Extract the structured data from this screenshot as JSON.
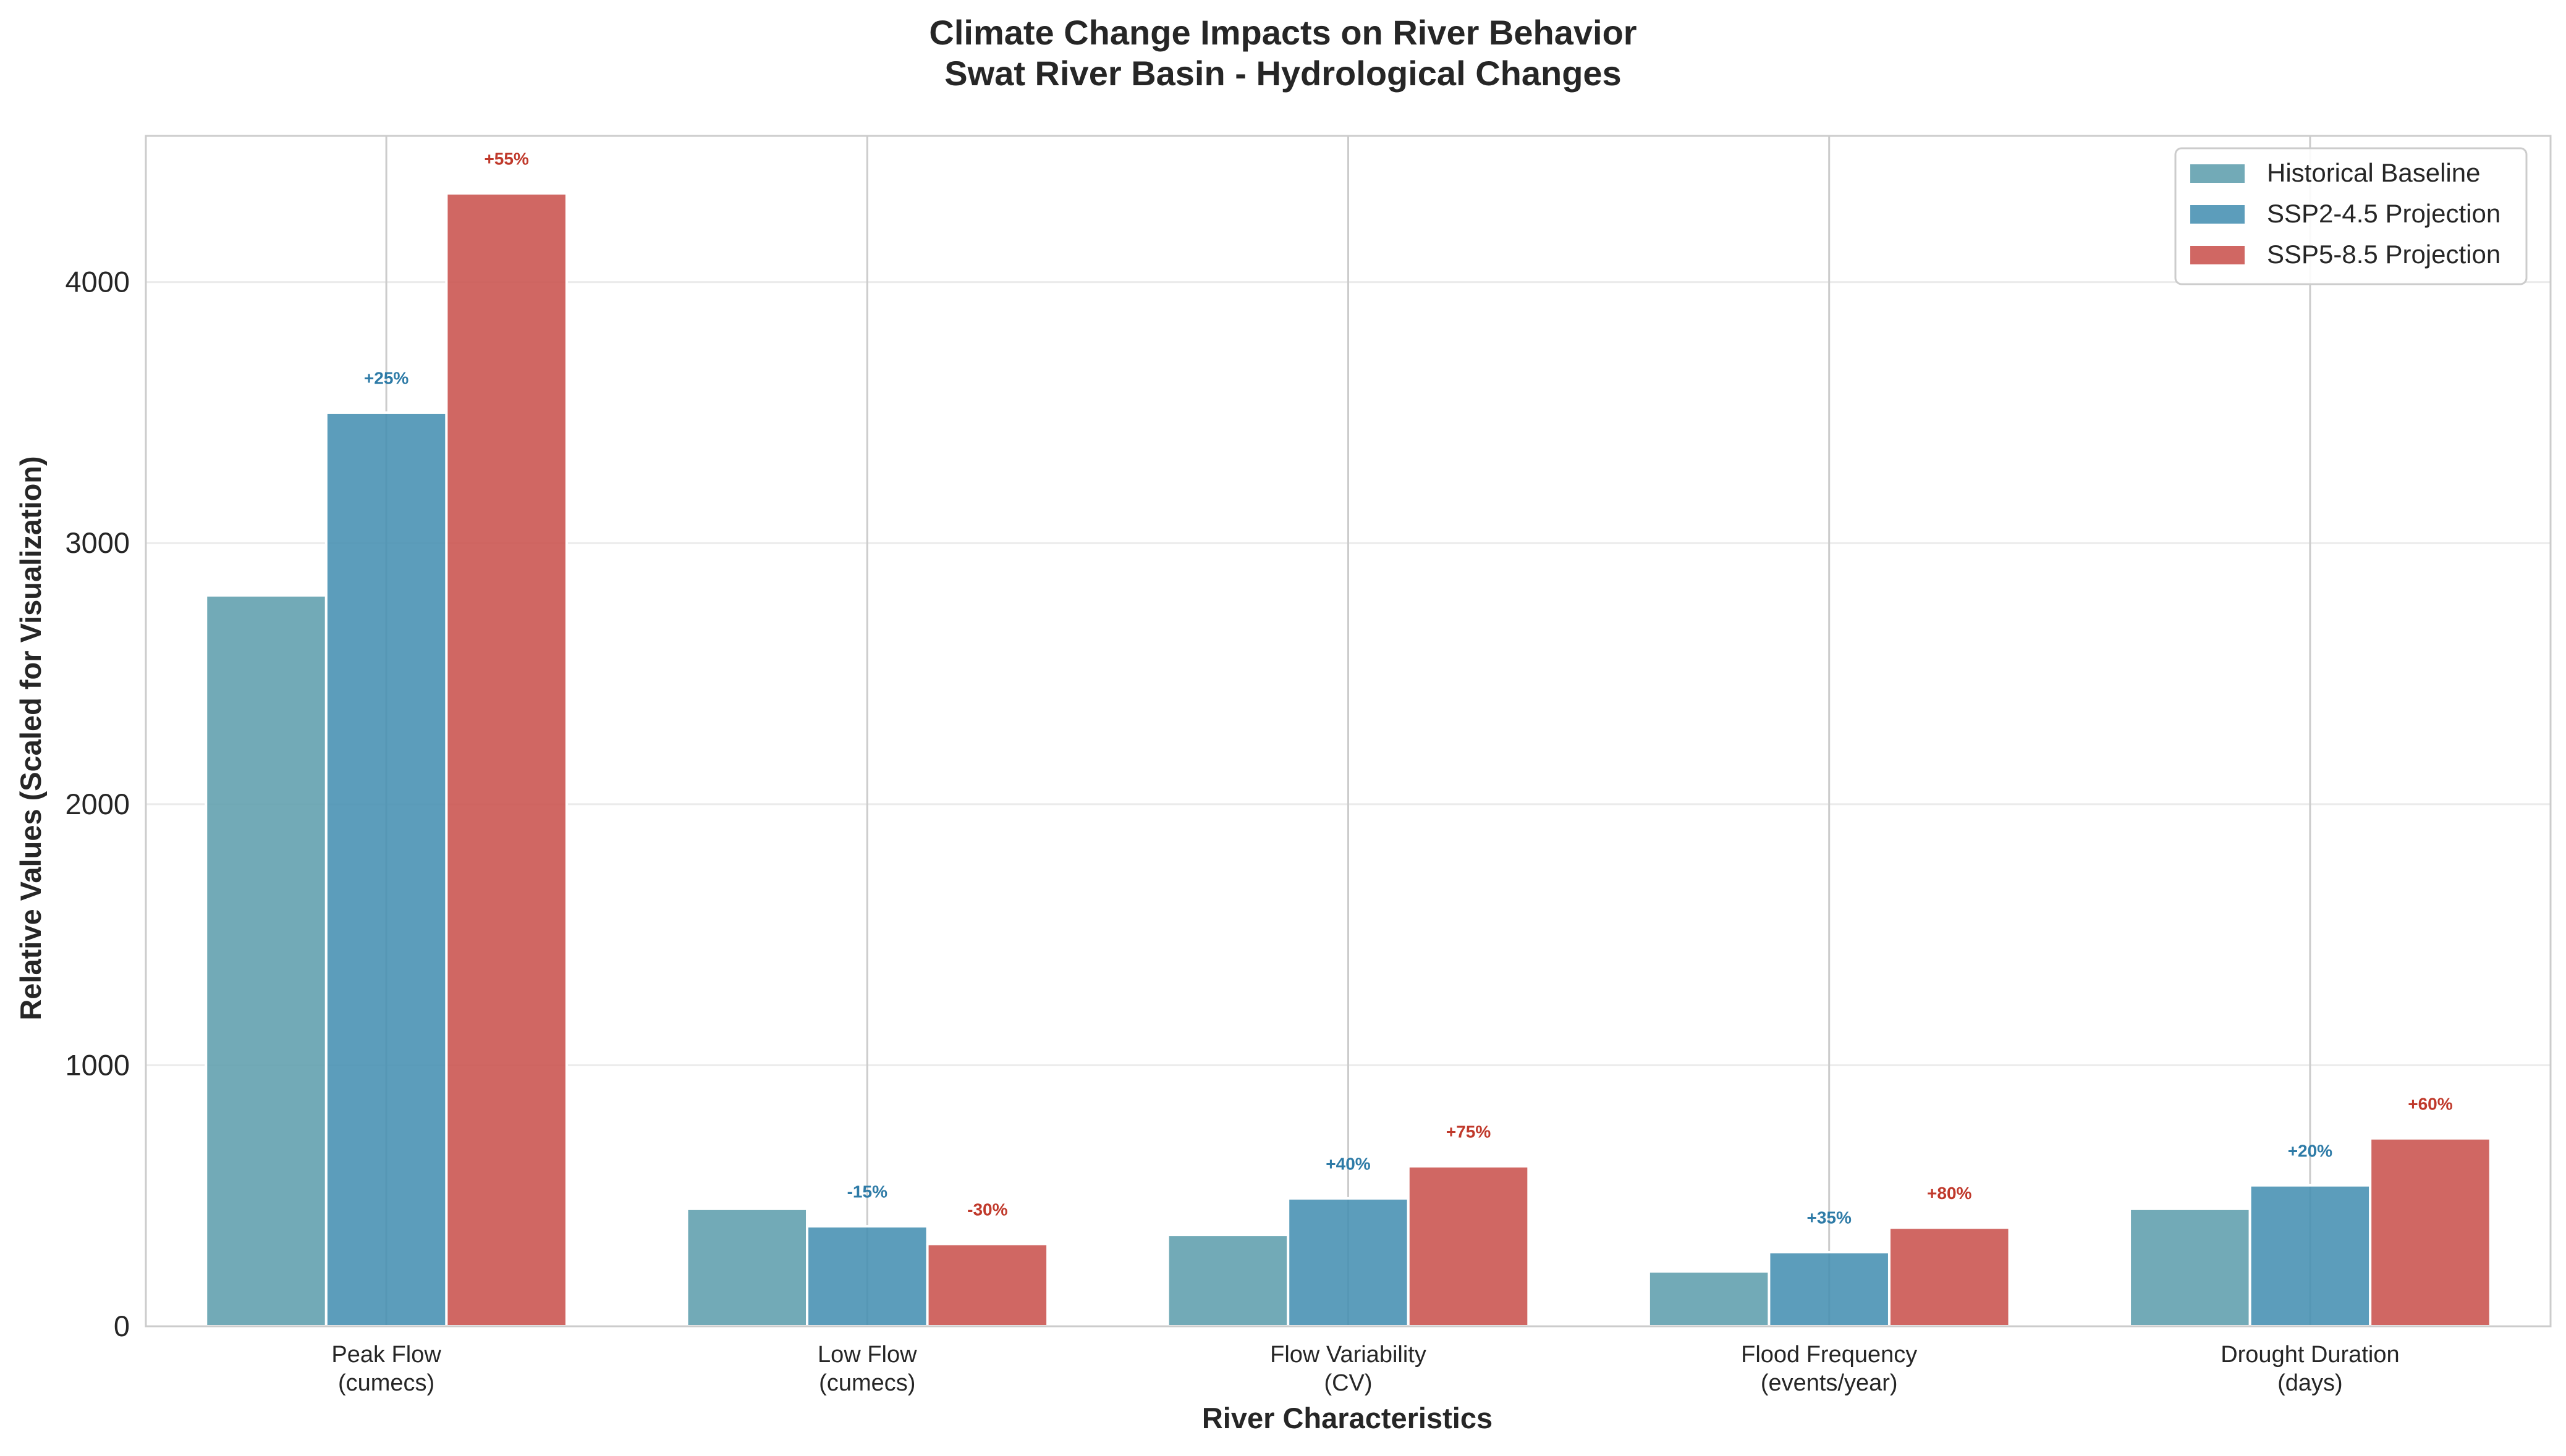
{
  "chart_data": {
    "type": "bar",
    "title_line1": "Climate Change Impacts on River Behavior",
    "title_line2": "Swat River Basin - Hydrological Changes",
    "xlabel": "River Characteristics",
    "ylabel": "Relative Values (Scaled for Visualization)",
    "ylim": [
      0,
      4560
    ],
    "yticks": [
      0,
      1000,
      2000,
      3000,
      4000
    ],
    "categories": [
      [
        "Peak Flow",
        "(cumecs)"
      ],
      [
        "Low Flow",
        "(cumecs)"
      ],
      [
        "Flow Variability",
        "(CV)"
      ],
      [
        "Flood Frequency",
        "(events/year)"
      ],
      [
        "Drought Duration",
        "(days)"
      ]
    ],
    "series": [
      {
        "name": "Historical Baseline",
        "color": "#5f9ead",
        "values": [
          2800,
          450,
          350,
          210,
          450
        ],
        "labels": [
          "",
          "",
          "",
          "",
          ""
        ]
      },
      {
        "name": "SSP2-4.5 Projection",
        "color": "#468fb2",
        "label_color": "#2e7ba7",
        "values": [
          3500,
          383,
          490,
          284,
          540
        ],
        "labels": [
          "+25%",
          "-15%",
          "+40%",
          "+35%",
          "+20%"
        ]
      },
      {
        "name": "SSP5-8.5 Projection",
        "color": "#c9524d",
        "label_color": "#c0392b",
        "values": [
          4340,
          315,
          613,
          378,
          720
        ],
        "labels": [
          "+55%",
          "-30%",
          "+75%",
          "+80%",
          "+60%"
        ]
      }
    ],
    "grid": true,
    "legend_position": "top-right"
  }
}
